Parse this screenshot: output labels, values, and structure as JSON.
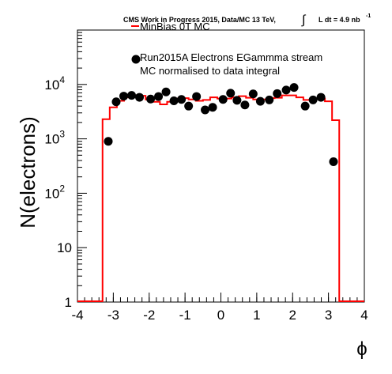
{
  "chart_data": {
    "type": "line",
    "title_main": "CMS Work in Progress 2015, Data/MC 13 TeV, ",
    "title_integral": "∫",
    "title_lumi": "L dt = 4.9 nb",
    "title_lumi_exp": "-1",
    "xlabel": "ϕ",
    "ylabel": "N(electrons)",
    "xlim": [
      -4,
      4
    ],
    "ylim": [
      1,
      100000
    ],
    "log_y": true,
    "x_ticks": [
      "-4",
      "-3",
      "-2",
      "-1",
      "0",
      "1",
      "2",
      "3",
      "4"
    ],
    "y_ticks": [
      {
        "value": 1,
        "label": "1"
      },
      {
        "value": 10,
        "label": "10"
      },
      {
        "value": 100,
        "base": "10",
        "exp": "2"
      },
      {
        "value": 1000,
        "base": "10",
        "exp": "3"
      },
      {
        "value": 10000,
        "base": "10",
        "exp": "4"
      }
    ],
    "legend": {
      "mc_label": "MinBias 0T MC",
      "data_label": "Run2015A Electrons EGammma stream",
      "note": "MC normalised to data integral",
      "mc_color": "#ff0000",
      "data_color": "#000000"
    },
    "series": [
      {
        "name": "MinBias 0T MC",
        "kind": "histogram",
        "color": "#ff0000",
        "bin_edges": [
          -4.0,
          -3.3,
          -3.1,
          -2.9,
          -2.7,
          -2.5,
          -2.3,
          -2.1,
          -1.9,
          -1.7,
          -1.5,
          -1.3,
          -1.1,
          -0.9,
          -0.7,
          -0.5,
          -0.3,
          -0.1,
          0.1,
          0.3,
          0.5,
          0.7,
          0.9,
          1.1,
          1.3,
          1.5,
          1.7,
          1.9,
          2.1,
          2.3,
          2.5,
          2.7,
          2.9,
          3.1,
          3.3,
          4.0
        ],
        "values": [
          1,
          2300,
          3800,
          5000,
          5800,
          6300,
          6200,
          5300,
          4800,
          4300,
          4800,
          5500,
          5600,
          5300,
          5000,
          5200,
          5800,
          5500,
          5500,
          5800,
          6100,
          5700,
          5300,
          5300,
          5600,
          5700,
          6300,
          6300,
          5800,
          5200,
          5400,
          5500,
          4900,
          2200,
          1
        ]
      },
      {
        "name": "Run2015A Electrons EGammma stream",
        "kind": "points",
        "color": "#000000",
        "x": [
          -3.14,
          -2.92,
          -2.71,
          -2.49,
          -2.27,
          -1.96,
          -1.74,
          -1.53,
          -1.31,
          -1.1,
          -0.9,
          -0.68,
          -0.44,
          -0.23,
          0.06,
          0.27,
          0.45,
          0.67,
          0.9,
          1.1,
          1.35,
          1.57,
          1.82,
          2.04,
          2.35,
          2.57,
          2.79,
          3.14
        ],
        "y": [
          900,
          4800,
          6100,
          6300,
          5800,
          5400,
          6000,
          7300,
          5000,
          5300,
          4000,
          6000,
          3400,
          3800,
          5300,
          6900,
          5100,
          4200,
          6700,
          4900,
          5200,
          6800,
          7900,
          8800,
          4000,
          5200,
          5800,
          380
        ]
      }
    ],
    "grid": false,
    "legend_position": "top-center"
  }
}
